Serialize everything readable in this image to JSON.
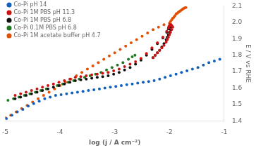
{
  "chart_data": {
    "type": "scatter",
    "xlabel": "log (j / A cm⁻²)",
    "ylabel": "E / V vs RHE",
    "xlim": [
      -5,
      -1
    ],
    "ylim": [
      1.4,
      2.1
    ],
    "xticks": [
      -5,
      -4,
      -3,
      -2,
      -1
    ],
    "yticks": [
      1.4,
      1.5,
      1.6,
      1.7,
      1.8,
      1.9,
      {
        "value": 2.0,
        "label": "2.0"
      },
      2.1
    ],
    "grid": false,
    "legend": "upper left",
    "marker": "circle",
    "series": [
      {
        "name": "Co-Pi pH 14",
        "color": "#1060BB",
        "x": [
          -4.98,
          -4.88,
          -4.78,
          -4.68,
          -4.58,
          -4.48,
          -4.38,
          -4.28,
          -4.18,
          -4.08,
          -3.98,
          -3.88,
          -3.78,
          -3.68,
          -3.58,
          -3.48,
          -3.38,
          -3.28,
          -3.18,
          -3.08,
          -2.98,
          -2.88,
          -2.78,
          -2.68,
          -2.58,
          -2.48,
          -2.38,
          -2.28,
          -2.18,
          -2.08,
          -1.98,
          -1.88,
          -1.78,
          -1.68,
          -1.58,
          -1.48,
          -1.38,
          -1.28,
          -1.18,
          -1.08
        ],
        "values": [
          1.415,
          1.435,
          1.455,
          1.47,
          1.49,
          1.505,
          1.52,
          1.535,
          1.545,
          1.555,
          1.56,
          1.565,
          1.57,
          1.575,
          1.58,
          1.585,
          1.59,
          1.595,
          1.6,
          1.605,
          1.61,
          1.615,
          1.62,
          1.625,
          1.63,
          1.635,
          1.64,
          1.645,
          1.655,
          1.665,
          1.675,
          1.685,
          1.695,
          1.705,
          1.715,
          1.725,
          1.74,
          1.755,
          1.765,
          1.775
        ]
      },
      {
        "name": "Co-Pi 1M PBS pH 11.3",
        "color": "#CC1111",
        "x": [
          -4.82,
          -4.72,
          -4.62,
          -4.52,
          -4.42,
          -4.32,
          -4.22,
          -4.12,
          -4.02,
          -3.92,
          -3.82,
          -3.72,
          -3.62,
          -3.52,
          -3.42,
          -3.32,
          -3.22,
          -3.12,
          -3.02,
          -2.92,
          -2.82,
          -2.72,
          -2.62,
          -2.52,
          -2.42,
          -2.32,
          -2.22,
          -2.12,
          -2.05,
          -2.02,
          -2.01,
          -2.0,
          -1.99,
          -1.98,
          -1.97,
          -1.96,
          -1.95,
          -1.94,
          -1.96,
          -1.98,
          -2.0,
          -2.02,
          -2.04,
          -2.06,
          -2.1,
          -2.14,
          -2.18,
          -2.22,
          -2.26,
          -2.3
        ],
        "values": [
          1.555,
          1.565,
          1.575,
          1.585,
          1.595,
          1.605,
          1.615,
          1.625,
          1.635,
          1.645,
          1.655,
          1.665,
          1.67,
          1.675,
          1.68,
          1.685,
          1.69,
          1.695,
          1.705,
          1.715,
          1.73,
          1.745,
          1.76,
          1.78,
          1.81,
          1.845,
          1.875,
          1.91,
          1.945,
          1.965,
          1.975,
          1.98,
          1.985,
          1.985,
          1.985,
          1.98,
          1.975,
          1.97,
          1.955,
          1.94,
          1.925,
          1.91,
          1.895,
          1.88,
          1.86,
          1.845,
          1.83,
          1.815,
          1.8,
          1.785
        ]
      },
      {
        "name": "Co-Pi 1M PBS pH 6.8",
        "color": "#111111",
        "x": [
          -4.82,
          -4.72,
          -4.62,
          -4.52,
          -4.42,
          -4.32,
          -4.22,
          -4.12,
          -4.02,
          -3.92,
          -3.82,
          -3.72,
          -3.62,
          -3.52,
          -3.42,
          -3.32,
          -3.22,
          -3.12,
          -3.02,
          -2.92,
          -2.82,
          -2.72,
          -2.62,
          -2.52,
          -2.42,
          -2.32,
          -2.22,
          -2.12,
          -2.05,
          -2.02,
          -2.01,
          -2.0,
          -1.99,
          -1.98,
          -1.97,
          -1.98,
          -2.0,
          -2.02,
          -2.04,
          -2.06,
          -2.1,
          -2.14,
          -2.18,
          -2.22,
          -2.26,
          -2.3
        ],
        "values": [
          1.535,
          1.545,
          1.555,
          1.565,
          1.575,
          1.585,
          1.595,
          1.605,
          1.615,
          1.625,
          1.635,
          1.645,
          1.65,
          1.655,
          1.66,
          1.665,
          1.67,
          1.675,
          1.685,
          1.695,
          1.71,
          1.725,
          1.745,
          1.77,
          1.8,
          1.835,
          1.87,
          1.905,
          1.94,
          1.96,
          1.97,
          1.975,
          1.975,
          1.975,
          1.97,
          1.955,
          1.94,
          1.925,
          1.91,
          1.895,
          1.87,
          1.85,
          1.83,
          1.815,
          1.8,
          1.785
        ]
      },
      {
        "name": "Co-Pi 0.1M PBS pH 6.8",
        "color": "#207820",
        "x": [
          -4.95,
          -4.85,
          -4.75,
          -4.65,
          -4.55,
          -4.45,
          -4.35,
          -4.25,
          -4.05,
          -3.95,
          -3.85,
          -3.75,
          -3.65,
          -3.55,
          -3.45,
          -3.35,
          -3.25,
          -3.15,
          -3.05,
          -2.95,
          -2.85,
          -2.75,
          -2.68,
          -2.63
        ],
        "values": [
          1.525,
          1.535,
          1.545,
          1.555,
          1.565,
          1.575,
          1.585,
          1.595,
          1.615,
          1.625,
          1.635,
          1.645,
          1.655,
          1.665,
          1.675,
          1.685,
          1.695,
          1.71,
          1.725,
          1.74,
          1.755,
          1.775,
          1.79,
          1.8
        ]
      },
      {
        "name": "Co-Pi 1M acetate buffer pH 4.7",
        "color": "#E05000",
        "x": [
          -5.0,
          -4.9,
          -4.8,
          -4.7,
          -4.6,
          -4.5,
          -4.4,
          -4.3,
          -4.2,
          -4.1,
          -4.0,
          -3.9,
          -3.8,
          -3.7,
          -3.6,
          -3.5,
          -3.4,
          -3.3,
          -3.2,
          -3.1,
          -3.0,
          -2.9,
          -2.8,
          -2.7,
          -2.6,
          -2.5,
          -2.4,
          -2.3,
          -2.2,
          -2.1,
          -2.0,
          -1.98,
          -1.96,
          -1.94,
          -1.92,
          -1.9,
          -1.88,
          -1.86,
          -1.84,
          -1.82,
          -1.8,
          -1.78,
          -1.76,
          -1.74,
          -1.72,
          -1.7
        ],
        "values": [
          1.42,
          1.435,
          1.455,
          1.475,
          1.495,
          1.515,
          1.535,
          1.555,
          1.575,
          1.595,
          1.615,
          1.635,
          1.655,
          1.675,
          1.695,
          1.715,
          1.735,
          1.755,
          1.775,
          1.795,
          1.815,
          1.835,
          1.855,
          1.875,
          1.895,
          1.915,
          1.935,
          1.955,
          1.97,
          1.985,
          1.995,
          2.005,
          2.015,
          2.025,
          2.03,
          2.04,
          2.05,
          2.055,
          2.06,
          2.065,
          2.07,
          2.075,
          2.08,
          2.085,
          2.088,
          2.09
        ]
      }
    ]
  }
}
